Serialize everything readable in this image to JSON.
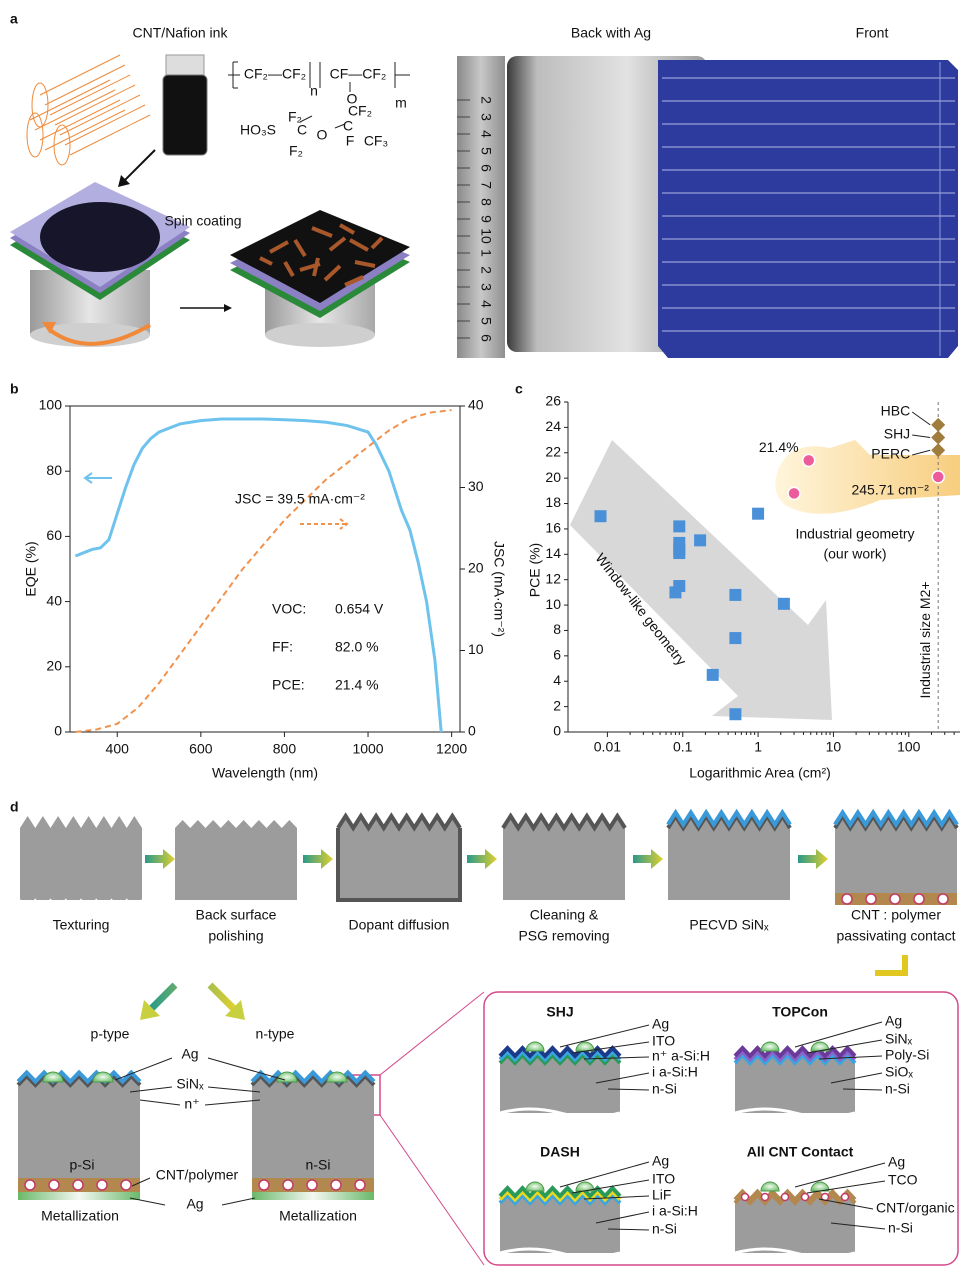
{
  "panel_labels": [
    "a",
    "b",
    "c",
    "d"
  ],
  "panel_a": {
    "ink_label": "CNT/Nafion ink",
    "spin_label": "Spin coating",
    "formula": [
      "CF₂—CF₂",
      "CF—CF₂",
      "n",
      "m",
      "O",
      "CF₂",
      "HO₃S",
      "F₂",
      "C",
      "O",
      "C",
      "CF₃",
      "F₂",
      "F"
    ],
    "photo_back": "Back with Ag",
    "photo_front": "Front",
    "ruler": [
      "2",
      "3",
      "4",
      "5",
      "6",
      "7",
      "8",
      "9",
      "10",
      "1",
      "2",
      "3",
      "4",
      "5",
      "6"
    ]
  },
  "chart_data": [
    {
      "type": "line",
      "xlabel": "Wavelength (nm)",
      "ylabel": "EQE (%)",
      "y2label": "JSC (mA·cm⁻²)",
      "xlim": [
        287,
        1220
      ],
      "xticks": [
        400,
        600,
        800,
        1000,
        1200
      ],
      "ylim": [
        0,
        100
      ],
      "yticks": [
        0,
        20,
        40,
        60,
        80,
        100
      ],
      "y2lim": [
        0,
        40
      ],
      "y2ticks": [
        0,
        10,
        20,
        30,
        40
      ],
      "series": [
        {
          "color": "#6ec3ee",
          "dash": false,
          "x": [
            300,
            320,
            340,
            360,
            380,
            400,
            420,
            440,
            460,
            480,
            500,
            550,
            600,
            650,
            700,
            750,
            800,
            850,
            900,
            950,
            1000,
            1020,
            1050,
            1080,
            1100,
            1120,
            1140,
            1160,
            1175
          ],
          "values": [
            54,
            55,
            56,
            56.5,
            59,
            67,
            75,
            82,
            87,
            90,
            92,
            94.5,
            95.5,
            96,
            96,
            96,
            95.8,
            95.5,
            95,
            94,
            92,
            88,
            80,
            68,
            62,
            52,
            40,
            22,
            0
          ]
        },
        {
          "color": "#f0924e",
          "dash": true,
          "axis": "y2",
          "x": [
            300,
            350,
            400,
            450,
            500,
            550,
            600,
            650,
            700,
            750,
            800,
            850,
            900,
            950,
            1000,
            1050,
            1100,
            1150,
            1200
          ],
          "values": [
            0,
            0.3,
            1,
            3,
            6,
            9.5,
            13,
            16.5,
            20,
            23,
            26,
            28.5,
            31,
            33,
            35,
            37,
            38.5,
            39.2,
            39.5
          ]
        }
      ],
      "annotation": "JSC = 39.5 mA·cm⁻²",
      "stats": [
        {
          "label": "VOC:",
          "value": "0.654 V"
        },
        {
          "label": "FF:",
          "value": "82.0 %"
        },
        {
          "label": "PCE:",
          "value": "21.4 %"
        }
      ]
    },
    {
      "type": "scatter",
      "log_x": true,
      "xlabel": "Logarithmic Area (cm²)",
      "ylabel": "PCE (%)",
      "xlim": [
        0.003,
        450
      ],
      "xticks": [
        0.01,
        0.1,
        1,
        10,
        100
      ],
      "ylim": [
        0,
        26
      ],
      "yticks": [
        0,
        2,
        4,
        6,
        8,
        10,
        12,
        14,
        16,
        18,
        20,
        22,
        24,
        26
      ],
      "series": [
        {
          "color": "#4a90d9",
          "marker": "square",
          "x": [
            0.0081,
            0.09,
            0.09,
            0.09,
            0.09,
            0.09,
            0.08,
            0.17,
            1.0,
            0.5,
            0.5,
            0.25,
            0.5,
            2.2
          ],
          "values": [
            17.0,
            16.2,
            14.9,
            14.4,
            14.1,
            11.5,
            11.0,
            15.1,
            17.2,
            10.8,
            7.4,
            4.5,
            1.4,
            10.1
          ]
        },
        {
          "color": "#ec5c9b",
          "marker": "circle",
          "x": [
            4.7,
            3.0,
            245.71
          ],
          "values": [
            21.4,
            18.8,
            20.1
          ],
          "value_labels": [
            "21.4%",
            null,
            "245.71 cm⁻²"
          ]
        },
        {
          "color": "#a07d3c",
          "marker": "diamond",
          "x": [
            245.71,
            245.71,
            245.71
          ],
          "values": [
            24.2,
            23.2,
            22.2
          ],
          "point_labels": [
            "HBC",
            "SHJ",
            "PERC"
          ]
        }
      ],
      "vline": {
        "value": 245.71,
        "label": "Industrial size M2+"
      },
      "annotations": [
        "Industrial geometry",
        "(our work)",
        "Window-like geometry"
      ]
    }
  ],
  "panel_d": {
    "steps": [
      [
        "Texturing"
      ],
      [
        "Back surface",
        "polishing"
      ],
      [
        "Dopant diffusion"
      ],
      [
        "Cleaning &",
        "PSG  removing"
      ],
      [
        "PECVD SiNₓ"
      ],
      [
        "CNT : polymer",
        "passivating contact"
      ]
    ],
    "types": [
      "p-type",
      "n-type"
    ],
    "cell_labels": [
      "Ag",
      "SiNₓ",
      "n⁺",
      "p-Si",
      "n-Si",
      "CNT/polymer",
      "Ag",
      "Metallization",
      "Metallization"
    ],
    "insets": [
      {
        "title": "SHJ",
        "layers": [
          "Ag",
          "ITO",
          "n⁺ a-Si:H",
          "i a-Si:H",
          "n-Si"
        ]
      },
      {
        "title": "TOPCon",
        "layers": [
          "Ag",
          "SiNₓ",
          "Poly-Si",
          "SiOₓ",
          "n-Si"
        ]
      },
      {
        "title": "DASH",
        "layers": [
          "Ag",
          "ITO",
          "LiF",
          "i a-Si:H",
          "n-Si"
        ]
      },
      {
        "title": "All CNT Contact",
        "layers": [
          "Ag",
          "TCO",
          "CNT/organic",
          "n-Si"
        ]
      }
    ]
  }
}
